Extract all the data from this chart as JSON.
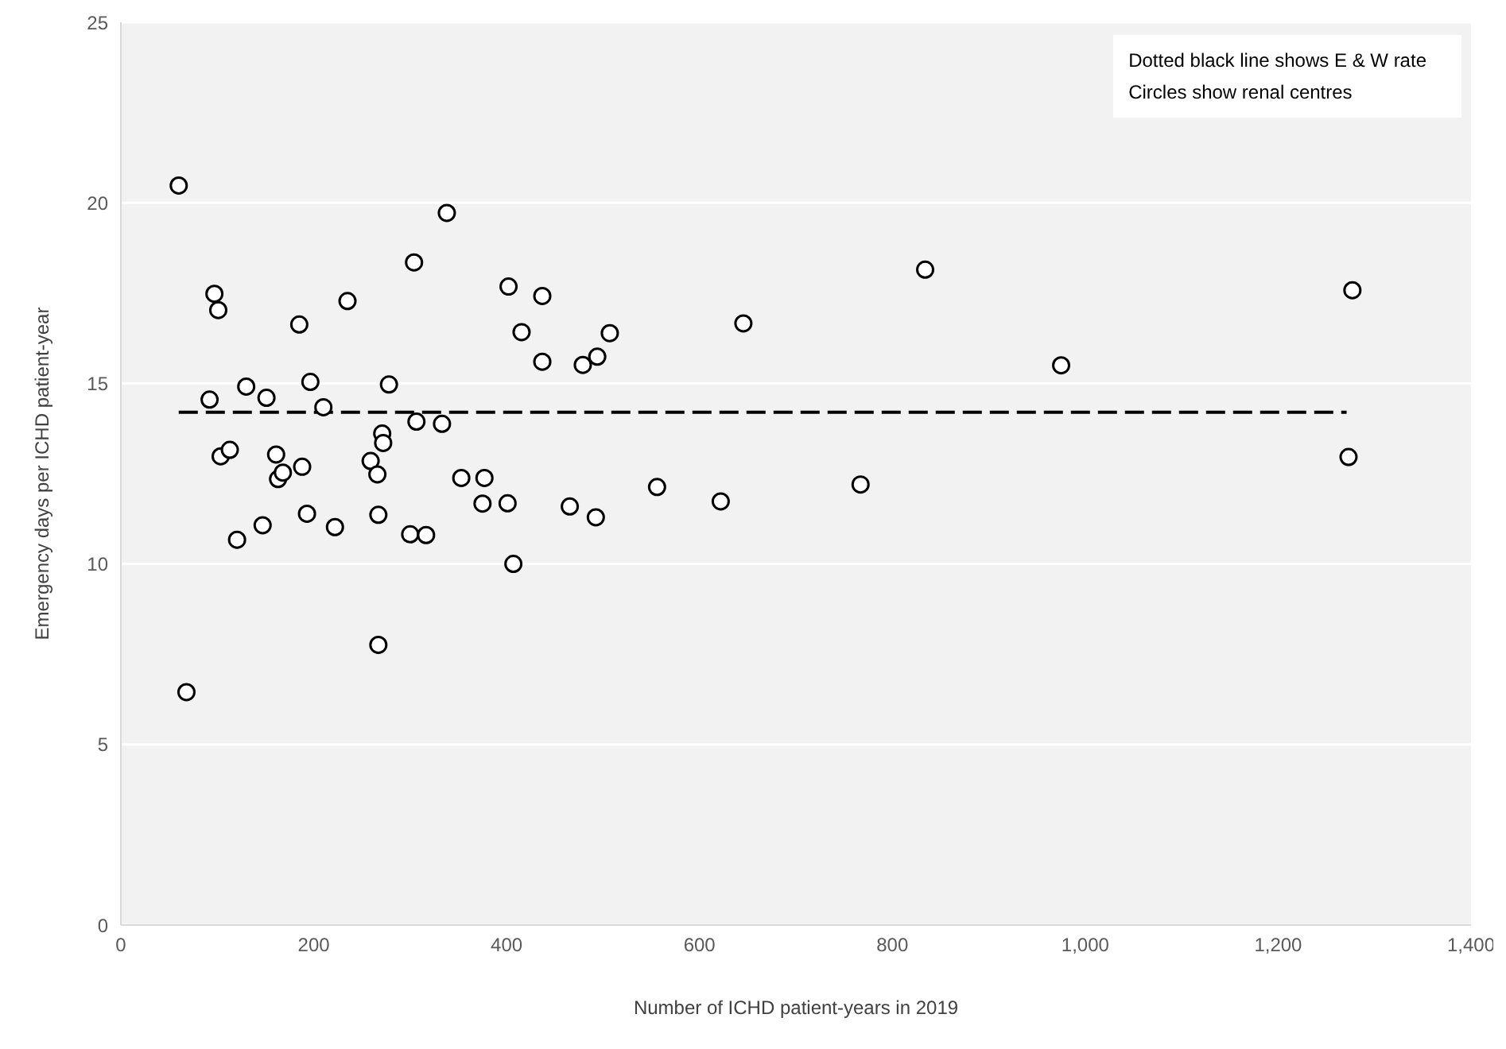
{
  "chart_data": {
    "type": "scatter",
    "xlabel": "Number of ICHD patient-years in 2019",
    "ylabel": "Emergency days per ICHD patient-year",
    "annotations": [
      "Dotted black line shows E & W rate",
      "Circles show renal centres"
    ],
    "series": [
      {
        "color": "#000000",
        "x": [
          60,
          97,
          101,
          68,
          92,
          130,
          103.5,
          113,
          120.5,
          147,
          151,
          161,
          163,
          168,
          185,
          188,
          193,
          196.5,
          210,
          222,
          235,
          259,
          266,
          267,
          267,
          271,
          272,
          278,
          304,
          306.5,
          300,
          316.5,
          338,
          333,
          353,
          377,
          375,
          401,
          407,
          402,
          437,
          415.5,
          437,
          479,
          494,
          507,
          465.5,
          492.5,
          556,
          622,
          645.5,
          767,
          834,
          975,
          1277,
          1273
        ],
        "values": [
          20.48,
          17.48,
          17.03,
          6.45,
          14.55,
          14.91,
          12.98,
          13.16,
          10.67,
          11.07,
          14.6,
          13.03,
          12.35,
          12.53,
          16.63,
          12.69,
          11.39,
          15.04,
          14.34,
          11.02,
          17.28,
          12.85,
          12.48,
          11.36,
          7.76,
          13.61,
          13.35,
          14.97,
          18.35,
          13.94,
          10.82,
          10.8,
          19.72,
          13.88,
          12.38,
          12.38,
          11.67,
          11.68,
          10.0,
          17.68,
          17.42,
          16.42,
          15.6,
          15.51,
          15.74,
          16.39,
          11.59,
          11.29,
          12.13,
          11.73,
          16.66,
          12.2,
          18.15,
          15.5,
          17.58,
          12.96
        ]
      },
      {
        "type": "line",
        "marker": "none",
        "color": "#000000",
        "x": [
          60,
          1271
        ],
        "values": [
          14.2,
          14.2
        ]
      }
    ],
    "xlim": [
      0,
      1400
    ],
    "xticks": [
      0,
      200,
      400,
      600,
      800,
      {
        "value": 1000,
        "label": "1,000"
      },
      {
        "value": 1200,
        "label": "1,200"
      },
      {
        "value": 1400,
        "label": "1,400"
      }
    ],
    "ylim": [
      0,
      25
    ],
    "yticks": [
      0,
      5,
      10,
      15,
      20,
      25
    ],
    "grid": "y",
    "legend": false,
    "marker": "circle",
    "line_style": "dashed"
  }
}
